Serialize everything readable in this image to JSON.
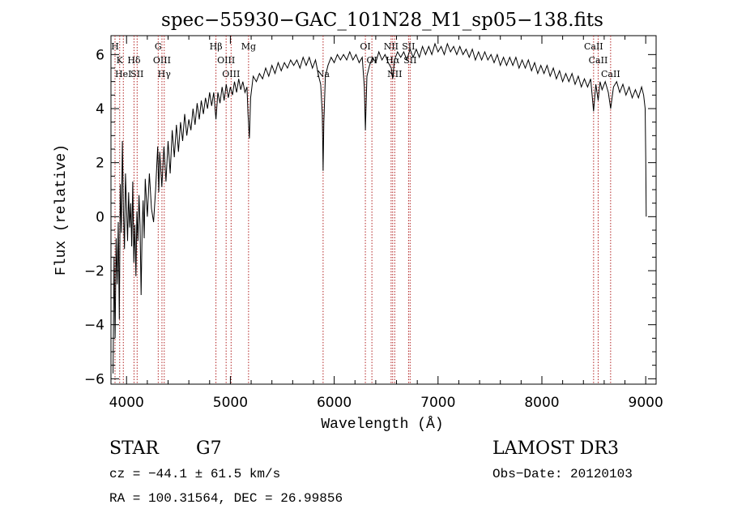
{
  "chart_data": {
    "type": "line",
    "title": "spec−55930−GAC_101N28_M1_sp05−138.fits",
    "xlabel": "Wavelength (Å)",
    "ylabel": "Flux (relative)",
    "xlim": [
      3850,
      9100
    ],
    "ylim": [
      -6.2,
      6.7
    ],
    "xticks": [
      {
        "value": 4000,
        "label": "4000"
      },
      {
        "value": 5000,
        "label": "5000"
      },
      {
        "value": 6000,
        "label": "6000"
      },
      {
        "value": 7000,
        "label": "7000"
      },
      {
        "value": 8000,
        "label": "8000"
      },
      {
        "value": 9000,
        "label": "9000"
      }
    ],
    "yticks": [
      {
        "value": -6,
        "label": "−6"
      },
      {
        "value": -4,
        "label": "−4"
      },
      {
        "value": -2,
        "label": "−2"
      },
      {
        "value": 0,
        "label": "0"
      },
      {
        "value": 2,
        "label": "2"
      },
      {
        "value": 4,
        "label": "4"
      },
      {
        "value": 6,
        "label": "6"
      }
    ],
    "series": [
      {
        "name": "flux",
        "points": [
          [
            3870,
            -5.8
          ],
          [
            3880,
            -1.5
          ],
          [
            3890,
            -4.5
          ],
          [
            3900,
            -0.8
          ],
          [
            3910,
            -2.5
          ],
          [
            3920,
            -0.2
          ],
          [
            3930,
            -3.8
          ],
          [
            3940,
            1.2
          ],
          [
            3950,
            -0.6
          ],
          [
            3960,
            2.8
          ],
          [
            3970,
            0.2
          ],
          [
            3980,
            -1.2
          ],
          [
            3990,
            1.6
          ],
          [
            4000,
            0.4
          ],
          [
            4010,
            -0.9
          ],
          [
            4020,
            0.9
          ],
          [
            4030,
            -0.4
          ],
          [
            4040,
            0.5
          ],
          [
            4050,
            -1.1
          ],
          [
            4060,
            1.3
          ],
          [
            4070,
            -1.7
          ],
          [
            4080,
            -0.3
          ],
          [
            4090,
            -2.2
          ],
          [
            4100,
            0.2
          ],
          [
            4110,
            -0.9
          ],
          [
            4120,
            0.8
          ],
          [
            4130,
            -0.3
          ],
          [
            4140,
            -2.9
          ],
          [
            4150,
            -0.4
          ],
          [
            4160,
            0.6
          ],
          [
            4170,
            -0.8
          ],
          [
            4180,
            1.4
          ],
          [
            4200,
            0.0
          ],
          [
            4220,
            1.6
          ],
          [
            4240,
            0.3
          ],
          [
            4260,
            -0.2
          ],
          [
            4280,
            1.0
          ],
          [
            4300,
            2.6
          ],
          [
            4310,
            0.9
          ],
          [
            4320,
            2.4
          ],
          [
            4340,
            1.1
          ],
          [
            4360,
            2.6
          ],
          [
            4380,
            1.3
          ],
          [
            4400,
            2.8
          ],
          [
            4420,
            1.6
          ],
          [
            4440,
            3.2
          ],
          [
            4460,
            2.2
          ],
          [
            4480,
            3.4
          ],
          [
            4500,
            2.4
          ],
          [
            4520,
            3.5
          ],
          [
            4540,
            2.8
          ],
          [
            4560,
            3.8
          ],
          [
            4580,
            3.0
          ],
          [
            4600,
            3.6
          ],
          [
            4620,
            3.2
          ],
          [
            4640,
            4.0
          ],
          [
            4660,
            3.4
          ],
          [
            4680,
            4.2
          ],
          [
            4700,
            3.6
          ],
          [
            4720,
            4.3
          ],
          [
            4740,
            3.8
          ],
          [
            4760,
            4.4
          ],
          [
            4780,
            4.0
          ],
          [
            4800,
            4.6
          ],
          [
            4820,
            4.1
          ],
          [
            4840,
            4.6
          ],
          [
            4861,
            3.6
          ],
          [
            4880,
            4.6
          ],
          [
            4900,
            4.2
          ],
          [
            4920,
            4.8
          ],
          [
            4940,
            4.3
          ],
          [
            4960,
            4.9
          ],
          [
            4980,
            4.4
          ],
          [
            5000,
            4.8
          ],
          [
            5020,
            4.5
          ],
          [
            5040,
            5.0
          ],
          [
            5060,
            4.6
          ],
          [
            5080,
            5.1
          ],
          [
            5100,
            4.7
          ],
          [
            5120,
            5.0
          ],
          [
            5140,
            4.6
          ],
          [
            5160,
            4.8
          ],
          [
            5170,
            3.8
          ],
          [
            5183,
            2.9
          ],
          [
            5195,
            4.4
          ],
          [
            5220,
            5.2
          ],
          [
            5250,
            5.0
          ],
          [
            5280,
            5.3
          ],
          [
            5310,
            5.1
          ],
          [
            5340,
            5.5
          ],
          [
            5370,
            5.2
          ],
          [
            5400,
            5.6
          ],
          [
            5430,
            5.3
          ],
          [
            5460,
            5.7
          ],
          [
            5490,
            5.4
          ],
          [
            5520,
            5.7
          ],
          [
            5550,
            5.5
          ],
          [
            5580,
            5.8
          ],
          [
            5610,
            5.6
          ],
          [
            5640,
            5.8
          ],
          [
            5670,
            5.5
          ],
          [
            5700,
            5.9
          ],
          [
            5730,
            5.6
          ],
          [
            5760,
            5.9
          ],
          [
            5790,
            5.5
          ],
          [
            5820,
            5.8
          ],
          [
            5850,
            5.2
          ],
          [
            5870,
            4.9
          ],
          [
            5885,
            3.8
          ],
          [
            5893,
            1.7
          ],
          [
            5900,
            3.5
          ],
          [
            5915,
            5.2
          ],
          [
            5940,
            5.6
          ],
          [
            5970,
            5.9
          ],
          [
            6000,
            5.7
          ],
          [
            6030,
            6.0
          ],
          [
            6060,
            5.8
          ],
          [
            6090,
            6.0
          ],
          [
            6120,
            5.8
          ],
          [
            6150,
            6.1
          ],
          [
            6180,
            5.8
          ],
          [
            6210,
            6.0
          ],
          [
            6240,
            5.7
          ],
          [
            6270,
            5.9
          ],
          [
            6290,
            4.8
          ],
          [
            6300,
            3.2
          ],
          [
            6315,
            5.2
          ],
          [
            6340,
            5.6
          ],
          [
            6370,
            5.9
          ],
          [
            6400,
            5.7
          ],
          [
            6430,
            6.1
          ],
          [
            6460,
            5.8
          ],
          [
            6490,
            6.0
          ],
          [
            6520,
            5.7
          ],
          [
            6550,
            5.5
          ],
          [
            6563,
            5.1
          ],
          [
            6580,
            5.8
          ],
          [
            6610,
            6.1
          ],
          [
            6640,
            5.9
          ],
          [
            6670,
            6.1
          ],
          [
            6700,
            5.8
          ],
          [
            6730,
            6.2
          ],
          [
            6760,
            5.9
          ],
          [
            6790,
            6.2
          ],
          [
            6820,
            5.9
          ],
          [
            6850,
            6.3
          ],
          [
            6880,
            6.0
          ],
          [
            6910,
            6.3
          ],
          [
            6940,
            6.0
          ],
          [
            6970,
            6.4
          ],
          [
            7000,
            6.1
          ],
          [
            7030,
            6.3
          ],
          [
            7060,
            6.0
          ],
          [
            7090,
            6.4
          ],
          [
            7120,
            6.1
          ],
          [
            7150,
            6.3
          ],
          [
            7180,
            6.0
          ],
          [
            7210,
            6.3
          ],
          [
            7240,
            6.0
          ],
          [
            7270,
            6.2
          ],
          [
            7300,
            5.9
          ],
          [
            7330,
            6.2
          ],
          [
            7360,
            5.8
          ],
          [
            7390,
            6.1
          ],
          [
            7420,
            5.8
          ],
          [
            7450,
            6.1
          ],
          [
            7480,
            5.8
          ],
          [
            7510,
            6.0
          ],
          [
            7540,
            5.7
          ],
          [
            7570,
            6.0
          ],
          [
            7600,
            5.6
          ],
          [
            7630,
            5.9
          ],
          [
            7660,
            5.6
          ],
          [
            7690,
            5.9
          ],
          [
            7720,
            5.6
          ],
          [
            7750,
            5.9
          ],
          [
            7780,
            5.5
          ],
          [
            7810,
            5.8
          ],
          [
            7840,
            5.5
          ],
          [
            7870,
            5.8
          ],
          [
            7900,
            5.4
          ],
          [
            7930,
            5.7
          ],
          [
            7960,
            5.3
          ],
          [
            7990,
            5.6
          ],
          [
            8020,
            5.3
          ],
          [
            8050,
            5.6
          ],
          [
            8080,
            5.2
          ],
          [
            8110,
            5.5
          ],
          [
            8140,
            5.1
          ],
          [
            8170,
            5.4
          ],
          [
            8200,
            5.0
          ],
          [
            8230,
            5.3
          ],
          [
            8260,
            5.0
          ],
          [
            8290,
            5.3
          ],
          [
            8320,
            4.9
          ],
          [
            8350,
            5.2
          ],
          [
            8380,
            4.8
          ],
          [
            8410,
            5.1
          ],
          [
            8440,
            4.8
          ],
          [
            8470,
            5.1
          ],
          [
            8498,
            3.9
          ],
          [
            8520,
            4.9
          ],
          [
            8542,
            4.3
          ],
          [
            8560,
            5.0
          ],
          [
            8580,
            4.7
          ],
          [
            8610,
            5.0
          ],
          [
            8640,
            4.6
          ],
          [
            8662,
            4.0
          ],
          [
            8690,
            4.8
          ],
          [
            8720,
            5.0
          ],
          [
            8750,
            4.6
          ],
          [
            8780,
            4.9
          ],
          [
            8810,
            4.5
          ],
          [
            8840,
            4.8
          ],
          [
            8870,
            4.4
          ],
          [
            8900,
            4.7
          ],
          [
            8930,
            4.4
          ],
          [
            8960,
            4.8
          ],
          [
            8980,
            4.5
          ],
          [
            8995,
            4.0
          ],
          [
            9000,
            2.2
          ],
          [
            9005,
            0.0
          ]
        ]
      }
    ],
    "lines": [
      {
        "x": 3889,
        "labels": [
          "He I"
        ]
      },
      {
        "x": 3934,
        "labels": [
          "K"
        ]
      },
      {
        "x": 3969,
        "labels": [
          "H"
        ]
      },
      {
        "x": 4072,
        "labels": [
          "S II"
        ]
      },
      {
        "x": 4102,
        "labels": [
          "Hδ"
        ]
      },
      {
        "x": 4305,
        "labels": [
          "G"
        ]
      },
      {
        "x": 4341,
        "labels": [
          "Hγ"
        ]
      },
      {
        "x": 4363,
        "labels": [
          "O III"
        ]
      },
      {
        "x": 4861,
        "labels": [
          "Hβ"
        ]
      },
      {
        "x": 4959,
        "labels": [
          "O III"
        ]
      },
      {
        "x": 5007,
        "labels": [
          "O III"
        ]
      },
      {
        "x": 5175,
        "labels": [
          "Mg"
        ]
      },
      {
        "x": 5893,
        "labels": [
          "Na"
        ]
      },
      {
        "x": 6300,
        "labels": [
          "O I"
        ]
      },
      {
        "x": 6363,
        "labels": [
          "O I"
        ]
      },
      {
        "x": 6548,
        "labels": [
          "N II"
        ]
      },
      {
        "x": 6563,
        "labels": [
          "Hα"
        ]
      },
      {
        "x": 6583,
        "labels": [
          "N II"
        ]
      },
      {
        "x": 6716,
        "labels": [
          "S II"
        ]
      },
      {
        "x": 6731,
        "labels": [
          "S II"
        ]
      },
      {
        "x": 8498,
        "labels": [
          "Ca II"
        ]
      },
      {
        "x": 8542,
        "labels": [
          "Ca II"
        ]
      },
      {
        "x": 8662,
        "labels": [
          "Ca II"
        ]
      }
    ]
  },
  "line_labels": [
    {
      "text": "H",
      "row": 1
    },
    {
      "text": "K",
      "row": 2
    },
    {
      "text": "HeI",
      "row": 3
    },
    {
      "text": "Hδ",
      "row": 2
    },
    {
      "text": "SII",
      "row": 3
    },
    {
      "text": "G",
      "row": 1
    },
    {
      "text": "OIII",
      "row": 2
    },
    {
      "text": "Hγ",
      "row": 3
    },
    {
      "text": "Hβ",
      "row": 1
    },
    {
      "text": "OIII",
      "row": 2
    },
    {
      "text": "OIII",
      "row": 3
    },
    {
      "text": "Mg",
      "row": 1
    },
    {
      "text": "Na",
      "row": 3
    },
    {
      "text": "OI",
      "row": 1
    },
    {
      "text": "OI",
      "row": 2
    },
    {
      "text": "NII",
      "row": 1
    },
    {
      "text": "Hα",
      "row": 2
    },
    {
      "text": "NII",
      "row": 3
    },
    {
      "text": "SII",
      "row": 1
    },
    {
      "text": "SII",
      "row": 2
    },
    {
      "text": "CaII",
      "row": 1
    },
    {
      "text": "CaII",
      "row": 2
    },
    {
      "text": "CaII",
      "row": 3
    }
  ],
  "info": {
    "object_class": "STAR",
    "subclass": "G7",
    "survey": "LAMOST DR3",
    "velocity": "cz = −44.1 ± 61.5 km/s",
    "obs_date": "Obs−Date: 20120103",
    "coords": "RA = 100.31564, DEC =  26.99856"
  },
  "colors": {
    "spectrum": "#000000",
    "line_marker": "#b22222",
    "axis": "#000000"
  }
}
